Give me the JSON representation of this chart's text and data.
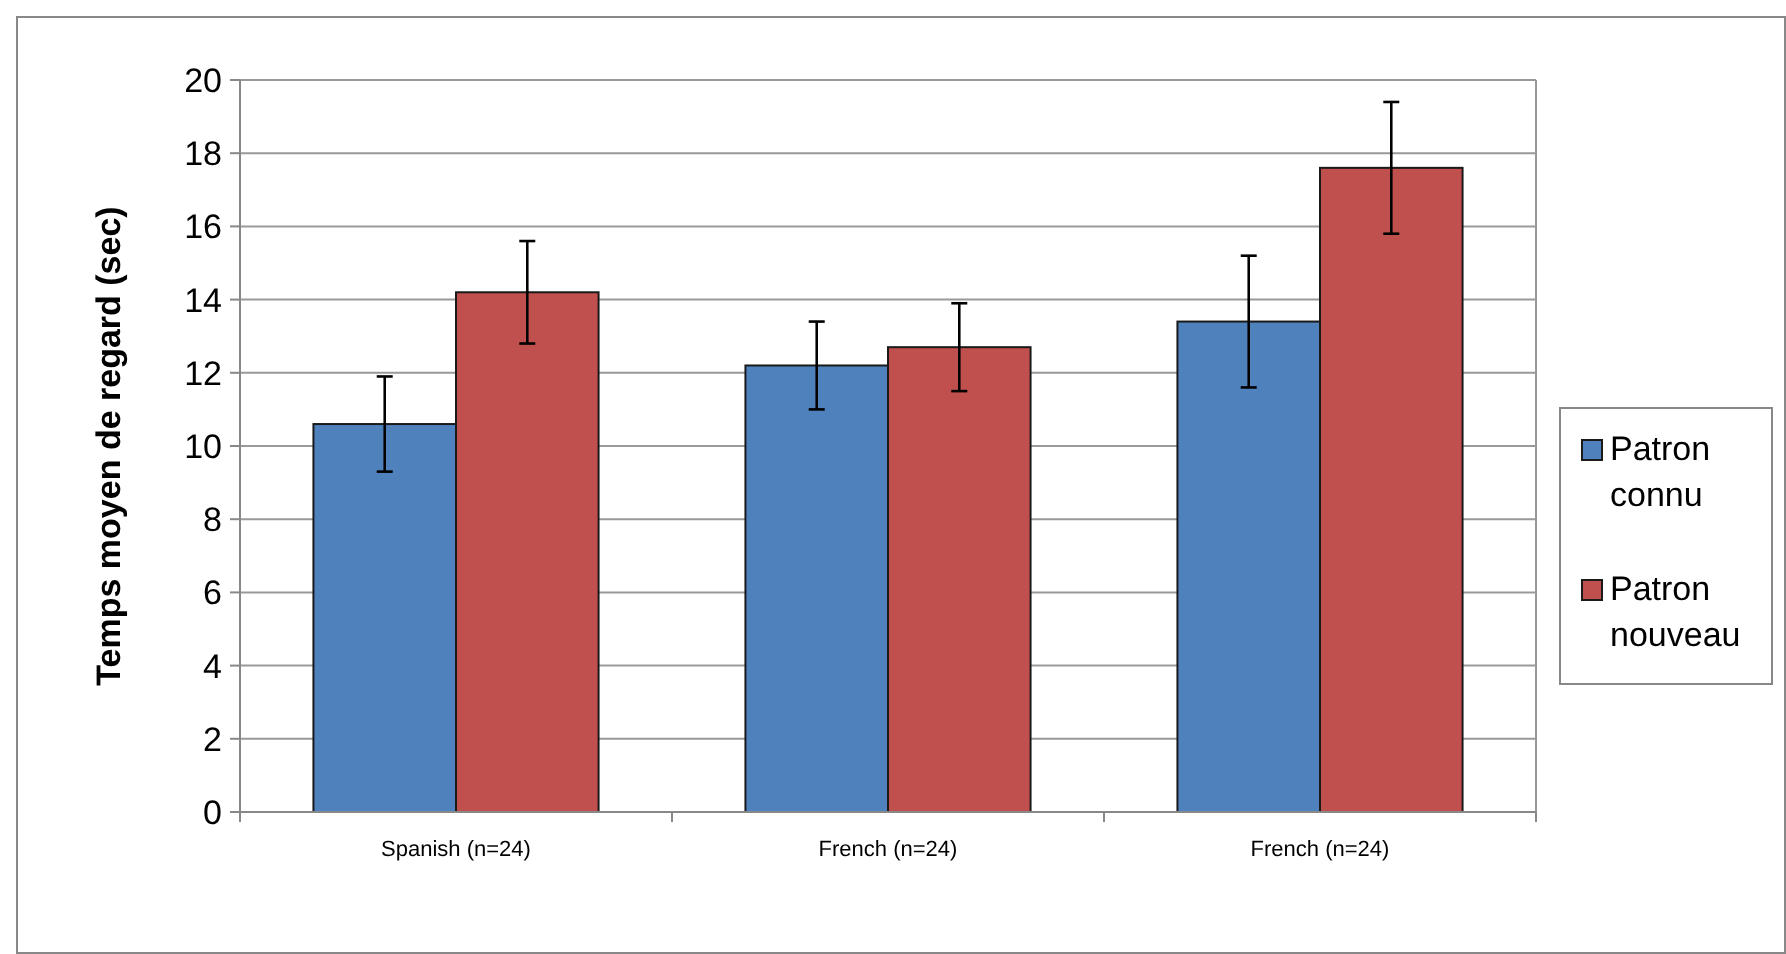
{
  "chart_data": {
    "type": "bar",
    "ylabel": "Temps moyen de regard (sec)",
    "categories": [
      "Spanish (n=24)",
      "French (n=24)",
      "French (n=24)"
    ],
    "series": [
      {
        "name": "Patron connu",
        "color": "#4f81bd",
        "values": [
          10.6,
          12.2,
          13.4
        ],
        "errors": [
          1.3,
          1.2,
          1.8
        ]
      },
      {
        "name": "Patron nouveau",
        "color": "#c0504d",
        "values": [
          14.2,
          12.7,
          17.6
        ],
        "errors": [
          1.4,
          1.2,
          1.8
        ]
      }
    ],
    "ylim": [
      0,
      20
    ],
    "yticks": [
      0,
      2,
      4,
      6,
      8,
      10,
      12,
      14,
      16,
      18,
      20
    ],
    "grid": "y",
    "legend": "right"
  }
}
